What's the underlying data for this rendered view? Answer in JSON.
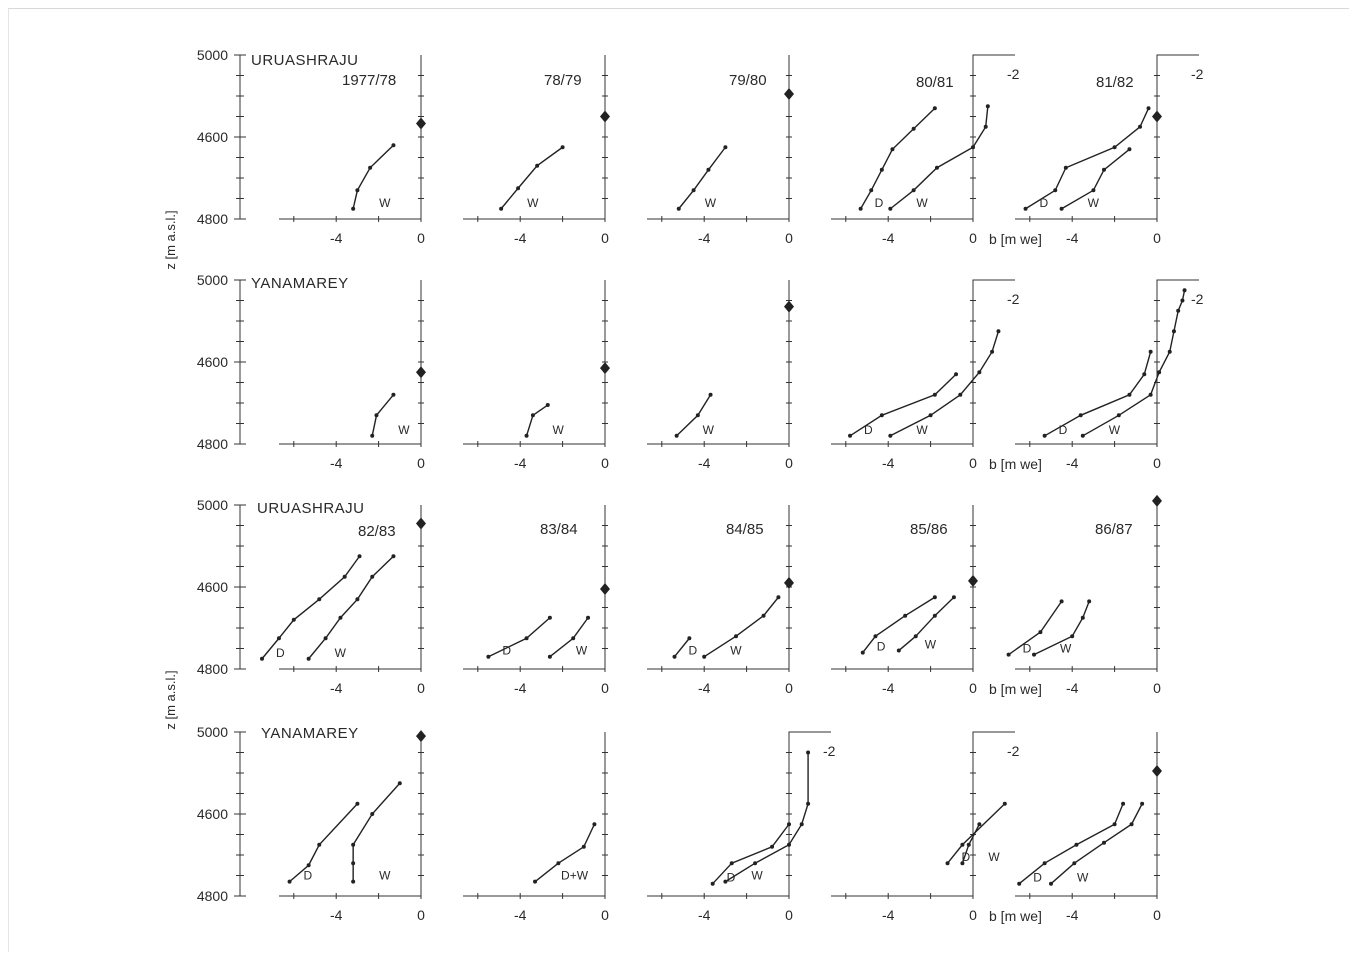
{
  "figure": {
    "ylabel": "z [m a.s.l.]",
    "xlabel": "b [m we]",
    "y_ticks": [
      "4600",
      "4800",
      "5000"
    ],
    "x_ticks": [
      "-4",
      "0"
    ],
    "offset_tick": "-2",
    "glacier_names": [
      "URUASHRAJU",
      "YANAMAREY",
      "URUASHRAJU",
      "YANAMAREY"
    ],
    "years_top": [
      "1977/78",
      "78/79",
      "79/80",
      "80/81",
      "81/82"
    ],
    "years_bottom": [
      "82/83",
      "83/84",
      "84/85",
      "85/86",
      "86/87"
    ]
  },
  "chart_data": {
    "type": "line",
    "ylabel": "z [m a.s.l.]",
    "xlabel": "b [m we]",
    "ylim": [
      4600,
      5000
    ],
    "grid": false,
    "panels": [
      {
        "row": 0,
        "col": 0,
        "glacier": "URUASHRAJU",
        "year": "1977/78",
        "ela": 4833,
        "series": [
          {
            "name": "W",
            "points": [
              [
                -3.2,
                4625
              ],
              [
                -3.0,
                4670
              ],
              [
                -2.4,
                4725
              ],
              [
                -1.3,
                4780
              ]
            ]
          }
        ]
      },
      {
        "row": 0,
        "col": 1,
        "year": "78/79",
        "ela": 4850,
        "series": [
          {
            "name": "W",
            "points": [
              [
                -4.9,
                4625
              ],
              [
                -4.1,
                4675
              ],
              [
                -3.2,
                4730
              ],
              [
                -2.0,
                4775
              ]
            ]
          }
        ]
      },
      {
        "row": 0,
        "col": 2,
        "year": "79/80",
        "ela": 4905,
        "series": [
          {
            "name": "W",
            "points": [
              [
                -5.2,
                4625
              ],
              [
                -4.5,
                4670
              ],
              [
                -3.8,
                4720
              ],
              [
                -3.0,
                4775
              ]
            ]
          }
        ]
      },
      {
        "row": 0,
        "col": 3,
        "year": "80/81",
        "ela": null,
        "series": [
          {
            "name": "D",
            "points": [
              [
                -5.3,
                4625
              ],
              [
                -4.8,
                4670
              ],
              [
                -4.3,
                4720
              ],
              [
                -3.8,
                4770
              ],
              [
                -2.8,
                4820
              ],
              [
                -1.8,
                4870
              ]
            ]
          },
          {
            "name": "W",
            "points": [
              [
                -3.9,
                4625
              ],
              [
                -2.8,
                4670
              ],
              [
                -1.7,
                4725
              ],
              [
                0.0,
                4775
              ],
              [
                0.6,
                4825
              ],
              [
                0.7,
                4875
              ]
            ]
          }
        ]
      },
      {
        "row": 0,
        "col": 4,
        "year": "81/82",
        "ela": 4850,
        "series": [
          {
            "name": "D",
            "points": [
              [
                -6.2,
                4625
              ],
              [
                -4.8,
                4670
              ],
              [
                -4.3,
                4725
              ],
              [
                -2.0,
                4775
              ],
              [
                -0.8,
                4825
              ],
              [
                -0.4,
                4870
              ]
            ]
          },
          {
            "name": "W",
            "points": [
              [
                -4.5,
                4625
              ],
              [
                -3.0,
                4670
              ],
              [
                -2.5,
                4720
              ],
              [
                -1.3,
                4770
              ]
            ]
          }
        ]
      },
      {
        "row": 1,
        "col": 0,
        "glacier": "YANAMAREY",
        "ela": 4775,
        "series": [
          {
            "name": "W",
            "points": [
              [
                -2.3,
                4620
              ],
              [
                -2.1,
                4670
              ],
              [
                -1.3,
                4720
              ]
            ]
          }
        ]
      },
      {
        "row": 1,
        "col": 1,
        "ela": 4785,
        "series": [
          {
            "name": "W",
            "points": [
              [
                -3.7,
                4620
              ],
              [
                -3.4,
                4670
              ],
              [
                -2.7,
                4695
              ]
            ]
          }
        ]
      },
      {
        "row": 1,
        "col": 2,
        "ela": 4935,
        "series": [
          {
            "name": "W",
            "points": [
              [
                -5.3,
                4620
              ],
              [
                -4.3,
                4670
              ],
              [
                -3.7,
                4720
              ]
            ]
          }
        ]
      },
      {
        "row": 1,
        "col": 3,
        "ela": null,
        "series": [
          {
            "name": "D",
            "points": [
              [
                -5.8,
                4620
              ],
              [
                -4.3,
                4670
              ],
              [
                -1.8,
                4720
              ],
              [
                -0.8,
                4770
              ]
            ]
          },
          {
            "name": "W",
            "points": [
              [
                -3.9,
                4620
              ],
              [
                -2.0,
                4670
              ],
              [
                -0.6,
                4720
              ],
              [
                0.3,
                4775
              ],
              [
                0.9,
                4825
              ],
              [
                1.2,
                4875
              ]
            ]
          }
        ]
      },
      {
        "row": 1,
        "col": 4,
        "ela": null,
        "series": [
          {
            "name": "D",
            "points": [
              [
                -5.3,
                4620
              ],
              [
                -3.6,
                4670
              ],
              [
                -1.3,
                4720
              ],
              [
                -0.6,
                4770
              ],
              [
                -0.3,
                4825
              ]
            ]
          },
          {
            "name": "W",
            "points": [
              [
                -3.5,
                4620
              ],
              [
                -1.8,
                4670
              ],
              [
                -0.3,
                4720
              ],
              [
                0.1,
                4775
              ],
              [
                0.6,
                4825
              ],
              [
                0.8,
                4875
              ],
              [
                1.0,
                4925
              ],
              [
                1.2,
                4950
              ],
              [
                1.3,
                4975
              ]
            ]
          }
        ]
      },
      {
        "row": 2,
        "col": 0,
        "glacier": "URUASHRAJU",
        "year": "82/83",
        "ela": 4955,
        "series": [
          {
            "name": "D",
            "points": [
              [
                -7.5,
                4625
              ],
              [
                -6.7,
                4675
              ],
              [
                -6.0,
                4720
              ],
              [
                -4.8,
                4770
              ],
              [
                -3.6,
                4825
              ],
              [
                -2.9,
                4875
              ]
            ]
          },
          {
            "name": "W",
            "points": [
              [
                -5.3,
                4625
              ],
              [
                -4.5,
                4675
              ],
              [
                -3.8,
                4725
              ],
              [
                -3.0,
                4770
              ],
              [
                -2.3,
                4825
              ],
              [
                -1.3,
                4875
              ]
            ]
          }
        ]
      },
      {
        "row": 2,
        "col": 1,
        "year": "83/84",
        "ela": 4795,
        "series": [
          {
            "name": "D",
            "points": [
              [
                -5.5,
                4630
              ],
              [
                -3.7,
                4675
              ],
              [
                -2.6,
                4725
              ]
            ]
          },
          {
            "name": "W",
            "points": [
              [
                -2.6,
                4630
              ],
              [
                -1.5,
                4675
              ],
              [
                -0.8,
                4725
              ]
            ]
          }
        ]
      },
      {
        "row": 2,
        "col": 2,
        "year": "84/85",
        "ela": 4810,
        "series": [
          {
            "name": "D",
            "points": [
              [
                -5.4,
                4630
              ],
              [
                -4.7,
                4675
              ]
            ]
          },
          {
            "name": "W",
            "points": [
              [
                -4.0,
                4630
              ],
              [
                -2.5,
                4680
              ],
              [
                -1.2,
                4730
              ],
              [
                -0.5,
                4775
              ]
            ]
          }
        ]
      },
      {
        "row": 2,
        "col": 3,
        "year": "85/86",
        "ela": 4815,
        "series": [
          {
            "name": "D",
            "points": [
              [
                -5.2,
                4640
              ],
              [
                -4.6,
                4680
              ],
              [
                -3.2,
                4730
              ],
              [
                -1.8,
                4775
              ]
            ]
          },
          {
            "name": "W",
            "points": [
              [
                -3.5,
                4645
              ],
              [
                -2.7,
                4680
              ],
              [
                -1.8,
                4730
              ],
              [
                -0.9,
                4775
              ]
            ]
          }
        ]
      },
      {
        "row": 2,
        "col": 4,
        "year": "86/87",
        "ela": 5010,
        "series": [
          {
            "name": "D",
            "points": [
              [
                -7.0,
                4635
              ],
              [
                -5.5,
                4690
              ],
              [
                -4.5,
                4765
              ]
            ]
          },
          {
            "name": "W",
            "points": [
              [
                -5.8,
                4635
              ],
              [
                -4.0,
                4680
              ],
              [
                -3.5,
                4725
              ],
              [
                -3.2,
                4765
              ]
            ]
          }
        ]
      },
      {
        "row": 3,
        "col": 0,
        "glacier": "YANAMAREY",
        "ela": 4990,
        "series": [
          {
            "name": "D",
            "points": [
              [
                -6.2,
                4635
              ],
              [
                -5.3,
                4675
              ],
              [
                -4.8,
                4725
              ],
              [
                -3.0,
                4825
              ]
            ]
          },
          {
            "name": "W",
            "points": [
              [
                -3.2,
                4635
              ],
              [
                -3.2,
                4680
              ],
              [
                -3.2,
                4725
              ],
              [
                -2.3,
                4800
              ],
              [
                -1.0,
                4875
              ]
            ]
          }
        ]
      },
      {
        "row": 3,
        "col": 1,
        "label": "D+W",
        "ela": null,
        "series": [
          {
            "name": "D+W",
            "points": [
              [
                -3.3,
                4635
              ],
              [
                -2.2,
                4680
              ],
              [
                -1.0,
                4720
              ],
              [
                -0.5,
                4775
              ]
            ]
          }
        ]
      },
      {
        "row": 3,
        "col": 2,
        "ela": null,
        "series": [
          {
            "name": "D",
            "points": [
              [
                -3.6,
                4630
              ],
              [
                -2.7,
                4680
              ],
              [
                -0.8,
                4720
              ],
              [
                0.0,
                4775
              ]
            ]
          },
          {
            "name": "W",
            "points": [
              [
                -3.0,
                4635
              ],
              [
                -1.6,
                4680
              ],
              [
                0.0,
                4725
              ],
              [
                0.6,
                4775
              ],
              [
                0.9,
                4825
              ],
              [
                0.9,
                4950
              ]
            ]
          }
        ]
      },
      {
        "row": 3,
        "col": 3,
        "ela": null,
        "series": [
          {
            "name": "D",
            "points": [
              [
                -1.2,
                4680
              ],
              [
                -0.5,
                4725
              ],
              [
                1.5,
                4825
              ]
            ]
          },
          {
            "name": "W",
            "points": [
              [
                -0.5,
                4680
              ],
              [
                -0.2,
                4725
              ],
              [
                0.3,
                4775
              ]
            ]
          }
        ]
      },
      {
        "row": 3,
        "col": 4,
        "ela": 4905,
        "series": [
          {
            "name": "D",
            "points": [
              [
                -6.5,
                4630
              ],
              [
                -5.3,
                4680
              ],
              [
                -3.8,
                4725
              ],
              [
                -2.0,
                4775
              ],
              [
                -1.6,
                4825
              ]
            ]
          },
          {
            "name": "W",
            "points": [
              [
                -5.0,
                4630
              ],
              [
                -3.9,
                4680
              ],
              [
                -2.5,
                4730
              ],
              [
                -1.2,
                4775
              ],
              [
                -0.7,
                4825
              ]
            ]
          }
        ]
      }
    ]
  }
}
